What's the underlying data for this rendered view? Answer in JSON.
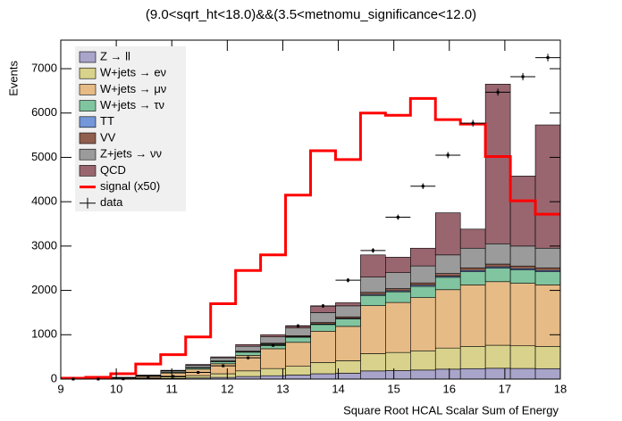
{
  "chart_data": {
    "type": "stacked_histogram",
    "title": "(9.0<sqrt_ht<18.0)&&(3.5<metnomu_significance<12.0)",
    "x_label": "Square Root HCAL Scalar Sum of Energy",
    "y_label": "Events",
    "bins": [
      9,
      9.45,
      9.9,
      10.35,
      10.8,
      11.25,
      11.7,
      12.15,
      12.6,
      13.05,
      13.5,
      13.95,
      14.4,
      14.85,
      15.3,
      15.75,
      16.2,
      16.65,
      17.1,
      17.55,
      18
    ],
    "xlim": [
      9,
      18
    ],
    "xticks": [
      9,
      10,
      11,
      12,
      13,
      14,
      15,
      16,
      17,
      18
    ],
    "ylim": [
      0,
      7644
    ],
    "yticks": [
      0,
      1000,
      2000,
      3000,
      4000,
      5000,
      6000,
      7000
    ],
    "series": [
      {
        "name": "Z → ll",
        "color": "#a9a4c9",
        "values": [
          0,
          1,
          3,
          7,
          15,
          25,
          38,
          59,
          76,
          92,
          120,
          132,
          184,
          192,
          204,
          224,
          236,
          244,
          240,
          236
        ]
      },
      {
        "name": "W+jets → eν",
        "color": "#d8d28c",
        "values": [
          1,
          2,
          6,
          14,
          32,
          53,
          82,
          126,
          162,
          196,
          255,
          281,
          391,
          408,
          434,
          476,
          502,
          519,
          510,
          502
        ]
      },
      {
        "name": "W+jets → μν",
        "color": "#e6bb86",
        "values": [
          2,
          7,
          18,
          40,
          89,
          146,
          226,
          348,
          447,
          541,
          705,
          776,
          1081,
          1128,
          1199,
          1316,
          1387,
          1434,
          1410,
          1387
        ]
      },
      {
        "name": "W+jets → τν",
        "color": "#80c59f",
        "values": [
          1,
          1,
          4,
          9,
          19,
          31,
          48,
          74,
          95,
          115,
          150,
          165,
          230,
          240,
          255,
          280,
          295,
          305,
          300,
          295
        ]
      },
      {
        "name": "TT",
        "color": "#7397d9",
        "values": [
          0,
          0,
          0,
          1,
          2,
          3,
          5,
          7,
          10,
          12,
          15,
          17,
          23,
          24,
          26,
          28,
          30,
          31,
          30,
          30
        ]
      },
      {
        "name": "VV",
        "color": "#8f5e4e",
        "values": [
          0,
          0,
          1,
          2,
          4,
          6,
          10,
          15,
          19,
          23,
          30,
          33,
          46,
          48,
          51,
          56,
          59,
          61,
          60,
          59
        ]
      },
      {
        "name": "Z+jets → νν",
        "color": "#9b9b9b",
        "values": [
          1,
          2,
          6,
          12,
          28,
          46,
          72,
          111,
          143,
          173,
          225,
          248,
          345,
          360,
          383,
          420,
          443,
          458,
          450,
          443
        ]
      },
      {
        "name": "QCD",
        "color": "#99666f",
        "values": [
          0,
          1,
          2,
          5,
          10,
          20,
          20,
          40,
          50,
          50,
          150,
          70,
          500,
          350,
          400,
          950,
          430,
          3600,
          1580,
          2780
        ]
      }
    ],
    "signal": {
      "name": "signal (x50)",
      "color": "#ff0000",
      "values": [
        20,
        40,
        120,
        340,
        550,
        950,
        1700,
        2450,
        2800,
        4150,
        5150,
        4950,
        6000,
        5950,
        6330,
        5850,
        5750,
        5020,
        4020,
        3720
      ]
    },
    "data": {
      "name": "data",
      "color": "#000000",
      "values": [
        0,
        0,
        5,
        20,
        60,
        150,
        300,
        480,
        760,
        1200,
        1650,
        2230,
        2900,
        3650,
        4350,
        5050,
        5770,
        6470,
        6820,
        7250
      ]
    }
  }
}
